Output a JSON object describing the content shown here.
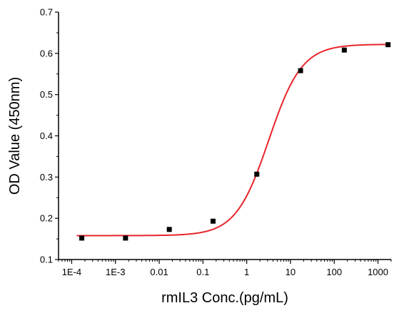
{
  "chart_data": {
    "type": "scatter",
    "title": "",
    "xlabel": "rmIL3 Conc.(pg/mL)",
    "ylabel": "OD Value (450nm)",
    "xscale": "log",
    "xlim": [
      5e-05,
      2000
    ],
    "ylim": [
      0.1,
      0.7
    ],
    "grid": false,
    "legend": "none",
    "x_tick_labels": [
      "1E-4",
      "1E-3",
      "0.01",
      "0.1",
      "1",
      "10",
      "100",
      "1000"
    ],
    "x_tick_values": [
      0.0001,
      0.001,
      0.01,
      0.1,
      1,
      10,
      100,
      1000
    ],
    "y_tick_labels": [
      "0.1",
      "0.2",
      "0.3",
      "0.4",
      "0.5",
      "0.6",
      "0.7"
    ],
    "y_tick_values": [
      0.1,
      0.2,
      0.3,
      0.4,
      0.5,
      0.6,
      0.7
    ],
    "series": [
      {
        "points": [
          {
            "x": 0.00017,
            "y": 0.152
          },
          {
            "x": 0.0017,
            "y": 0.152
          },
          {
            "x": 0.017,
            "y": 0.173
          },
          {
            "x": 0.17,
            "y": 0.193
          },
          {
            "x": 1.7,
            "y": 0.307
          },
          {
            "x": 17,
            "y": 0.558
          },
          {
            "x": 170,
            "y": 0.608
          },
          {
            "x": 1700,
            "y": 0.621
          }
        ],
        "marker": "square",
        "color": "#000000"
      }
    ],
    "fit_curve": {
      "model": "4PL",
      "bottom": 0.158,
      "top": 0.622,
      "ec50": 3.2,
      "hill": 1.15,
      "color": "#e8252b"
    }
  }
}
